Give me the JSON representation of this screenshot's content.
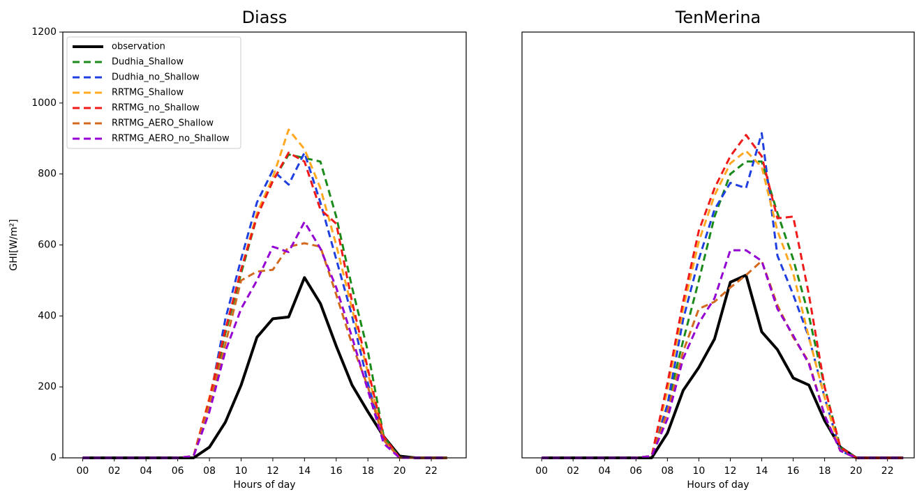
{
  "chart_data": [
    {
      "type": "line",
      "title": "Diass",
      "xlabel": "Hours of day",
      "ylabel": "GHI[W/m²]",
      "x": [
        0,
        1,
        2,
        3,
        4,
        5,
        6,
        7,
        8,
        9,
        10,
        11,
        12,
        13,
        14,
        15,
        16,
        17,
        18,
        19,
        20,
        21,
        22,
        23
      ],
      "xlim": [
        -1.25,
        24.2
      ],
      "ylim": [
        0,
        1200
      ],
      "xticks": [
        {
          "value": 0,
          "label": "00"
        },
        {
          "value": 2,
          "label": "02"
        },
        {
          "value": 4,
          "label": "04"
        },
        {
          "value": 6,
          "label": "06"
        },
        {
          "value": 8,
          "label": "08"
        },
        {
          "value": 10,
          "label": "10"
        },
        {
          "value": 12,
          "label": "12"
        },
        {
          "value": 14,
          "label": "14"
        },
        {
          "value": 16,
          "label": "16"
        },
        {
          "value": 18,
          "label": "18"
        },
        {
          "value": 20,
          "label": "20"
        },
        {
          "value": 22,
          "label": "22"
        }
      ],
      "yticks": [
        0,
        200,
        400,
        600,
        800,
        1000,
        1200
      ],
      "legend": "upper left",
      "series": [
        {
          "name": "observation",
          "color": "#000000",
          "linestyle": "solid",
          "values": [
            0,
            0,
            0,
            0,
            0,
            0,
            0,
            0,
            30,
            100,
            205,
            340,
            392,
            397,
            508,
            435,
            315,
            205,
            130,
            60,
            5,
            0,
            0,
            0
          ]
        },
        {
          "name": "Dudhia_Shallow",
          "color": "#1a8a1a",
          "linestyle": "dashed",
          "values": [
            0,
            0,
            0,
            0,
            0,
            0,
            0,
            5,
            150,
            350,
            520,
            680,
            780,
            855,
            845,
            835,
            680,
            480,
            300,
            60,
            0,
            0,
            0,
            0
          ]
        },
        {
          "name": "Dudhia_no_Shallow",
          "color": "#1f3fe0",
          "linestyle": "dashed",
          "values": [
            0,
            0,
            0,
            0,
            0,
            0,
            0,
            5,
            160,
            390,
            560,
            720,
            810,
            770,
            860,
            720,
            560,
            400,
            210,
            50,
            0,
            0,
            0,
            0
          ]
        },
        {
          "name": "RRTMG_Shallow",
          "color": "#ffa820",
          "linestyle": "dashed",
          "values": [
            0,
            0,
            0,
            0,
            0,
            0,
            0,
            5,
            170,
            360,
            530,
            690,
            790,
            925,
            870,
            760,
            600,
            420,
            240,
            50,
            0,
            0,
            0,
            0
          ]
        },
        {
          "name": "RRTMG_no_Shallow",
          "color": "#f01a1a",
          "linestyle": "dashed",
          "values": [
            0,
            0,
            0,
            0,
            0,
            0,
            0,
            5,
            165,
            360,
            530,
            680,
            780,
            860,
            835,
            700,
            660,
            440,
            250,
            60,
            0,
            0,
            0,
            0
          ]
        },
        {
          "name": "RRTMG_AERO_Shallow",
          "color": "#d2691e",
          "linestyle": "dashed",
          "values": [
            0,
            0,
            0,
            0,
            0,
            0,
            0,
            5,
            150,
            320,
            500,
            525,
            530,
            595,
            605,
            595,
            460,
            320,
            200,
            50,
            0,
            0,
            0,
            0
          ]
        },
        {
          "name": "RRTMG_AERO_no_Shallow",
          "color": "#9400d3",
          "linestyle": "dashed",
          "values": [
            0,
            0,
            0,
            0,
            0,
            0,
            0,
            5,
            130,
            300,
            420,
            500,
            595,
            580,
            665,
            590,
            480,
            340,
            190,
            40,
            0,
            0,
            0,
            0
          ]
        }
      ]
    },
    {
      "type": "line",
      "title": "TenMerina",
      "xlabel": "Hours of day",
      "x": [
        0,
        1,
        2,
        3,
        4,
        5,
        6,
        7,
        8,
        9,
        10,
        11,
        12,
        13,
        14,
        15,
        16,
        17,
        18,
        19,
        20,
        21,
        22,
        23
      ],
      "xlim": [
        -1.25,
        23.7
      ],
      "ylim": [
        0,
        1200
      ],
      "xticks": [
        {
          "value": 0,
          "label": "00"
        },
        {
          "value": 2,
          "label": "02"
        },
        {
          "value": 4,
          "label": "04"
        },
        {
          "value": 6,
          "label": "06"
        },
        {
          "value": 8,
          "label": "08"
        },
        {
          "value": 10,
          "label": "10"
        },
        {
          "value": 12,
          "label": "12"
        },
        {
          "value": 14,
          "label": "14"
        },
        {
          "value": 16,
          "label": "16"
        },
        {
          "value": 18,
          "label": "18"
        },
        {
          "value": 20,
          "label": "20"
        },
        {
          "value": 22,
          "label": "22"
        }
      ],
      "series": [
        {
          "color": "#000000",
          "linestyle": "solid",
          "values": [
            0,
            0,
            0,
            0,
            0,
            0,
            0,
            0,
            70,
            190,
            255,
            335,
            495,
            515,
            355,
            305,
            225,
            205,
            105,
            30,
            0,
            0,
            0,
            0
          ]
        },
        {
          "color": "#1a8a1a",
          "linestyle": "dashed",
          "values": [
            0,
            0,
            0,
            0,
            0,
            0,
            0,
            5,
            150,
            330,
            500,
            680,
            800,
            835,
            835,
            690,
            560,
            400,
            200,
            30,
            0,
            0,
            0,
            0
          ]
        },
        {
          "color": "#1f3fe0",
          "linestyle": "dashed",
          "values": [
            0,
            0,
            0,
            0,
            0,
            0,
            0,
            5,
            150,
            390,
            560,
            700,
            775,
            760,
            915,
            570,
            460,
            340,
            170,
            20,
            0,
            0,
            0,
            0
          ]
        },
        {
          "color": "#ffa820",
          "linestyle": "dashed",
          "values": [
            0,
            0,
            0,
            0,
            0,
            0,
            0,
            5,
            190,
            420,
            610,
            740,
            830,
            865,
            820,
            640,
            520,
            340,
            170,
            20,
            0,
            0,
            0,
            0
          ]
        },
        {
          "color": "#f01a1a",
          "linestyle": "dashed",
          "values": [
            0,
            0,
            0,
            0,
            0,
            0,
            0,
            5,
            210,
            440,
            640,
            760,
            850,
            910,
            850,
            675,
            680,
            460,
            200,
            30,
            0,
            0,
            0,
            0
          ]
        },
        {
          "color": "#d2691e",
          "linestyle": "dashed",
          "values": [
            0,
            0,
            0,
            0,
            0,
            0,
            0,
            5,
            130,
            300,
            420,
            440,
            480,
            515,
            555,
            430,
            340,
            270,
            120,
            20,
            0,
            0,
            0,
            0
          ]
        },
        {
          "color": "#9400d3",
          "linestyle": "dashed",
          "values": [
            0,
            0,
            0,
            0,
            0,
            0,
            0,
            5,
            110,
            280,
            380,
            450,
            585,
            585,
            555,
            420,
            345,
            265,
            120,
            20,
            0,
            0,
            0,
            0
          ]
        }
      ]
    }
  ]
}
